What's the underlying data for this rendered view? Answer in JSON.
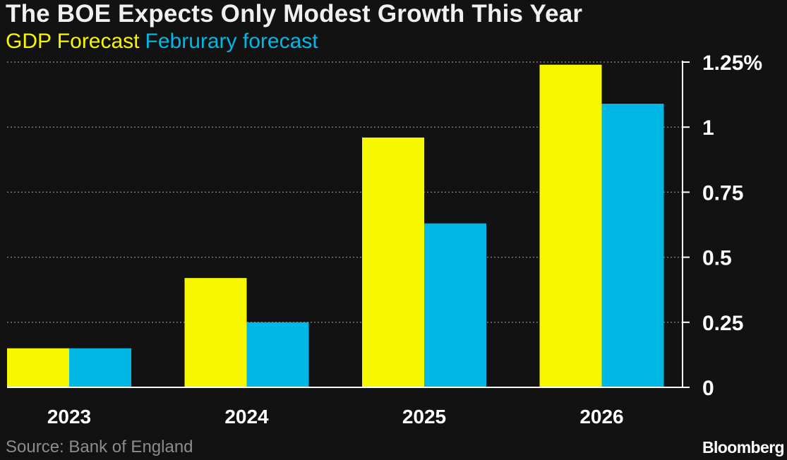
{
  "title": "The BOE Expects Only Modest Growth This Year",
  "source": "Source: Bank of England",
  "brand": "Bloomberg",
  "colors": {
    "background": "#121212",
    "series_1": "#f7f700",
    "series_2": "#00b8e6",
    "grid": "#777777",
    "axis": "#ffffff"
  },
  "chart_data": {
    "type": "bar",
    "categories": [
      "2023",
      "2024",
      "2025",
      "2026"
    ],
    "series": [
      {
        "name": "GDP Forecast",
        "color": "#f7f700",
        "values": [
          0.15,
          0.42,
          0.96,
          1.24
        ]
      },
      {
        "name": "Februrary forecast",
        "color": "#00b8e6",
        "values": [
          0.15,
          0.25,
          0.63,
          1.09
        ]
      }
    ],
    "ylim": [
      0,
      1.25
    ],
    "yticks": [
      0,
      0.25,
      0.5,
      0.75,
      1,
      1.25
    ],
    "ytick_labels": [
      "0",
      "0.25",
      "0.5",
      "0.75",
      "1",
      "1.25%"
    ],
    "y_axis_position": "right",
    "grid": true,
    "legend_position": "top-left"
  }
}
